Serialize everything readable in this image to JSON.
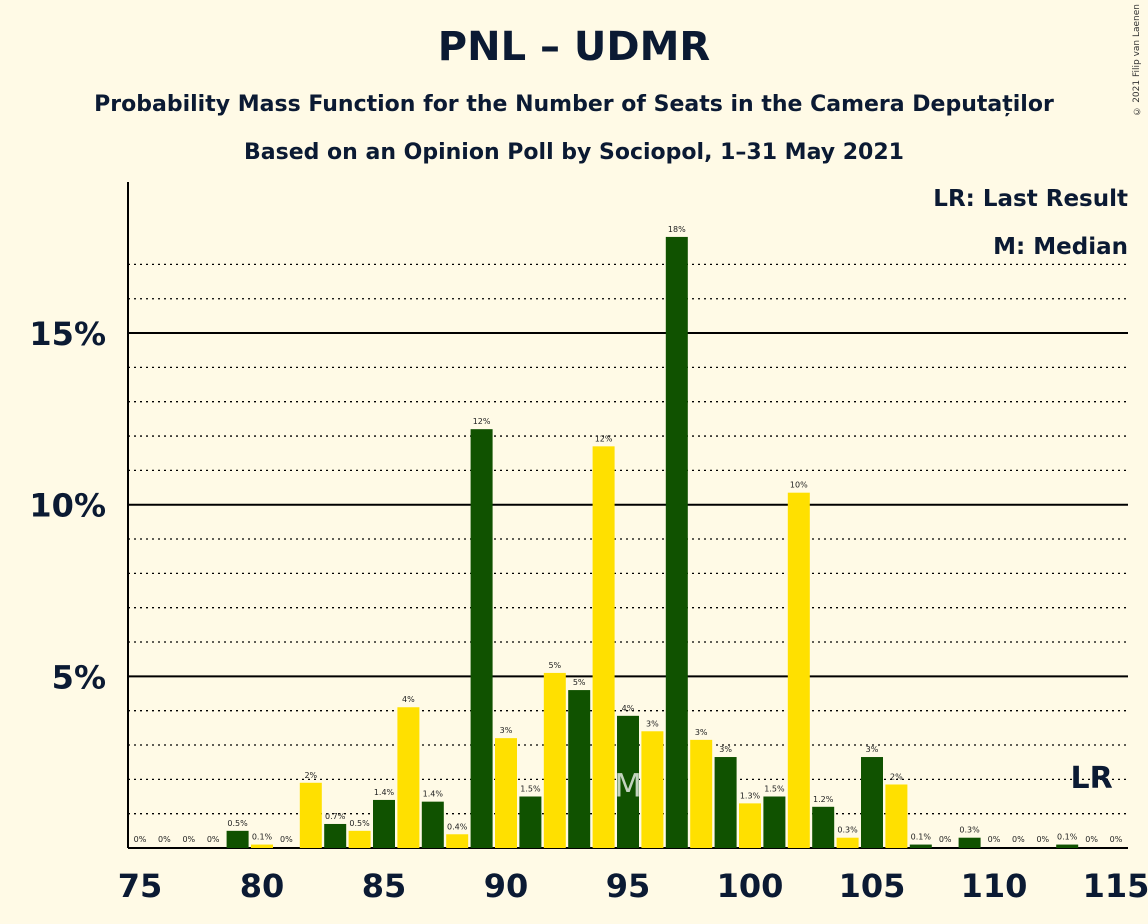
{
  "header": {
    "title": "PNL – UDMR",
    "subtitle": "Probability Mass Function for the Number of Seats in the Camera Deputaților",
    "subtitle2": "Based on an Opinion Poll by Sociopol, 1–31 May 2021",
    "copyright": "© 2021 Filip van Laenen"
  },
  "legend": {
    "last_result": "LR: Last Result",
    "median": "M: Median"
  },
  "colors": {
    "background": "#fffae6",
    "dark_green": "#105200",
    "yellow": "#ffe000",
    "text": "#0b1a33"
  },
  "chart_data": {
    "type": "bar",
    "x": [
      75,
      76,
      77,
      78,
      79,
      80,
      81,
      82,
      83,
      84,
      85,
      86,
      87,
      88,
      89,
      90,
      91,
      92,
      93,
      94,
      95,
      96,
      97,
      98,
      99,
      100,
      101,
      102,
      103,
      104,
      105,
      106,
      107,
      108,
      109,
      110,
      111,
      112,
      113,
      114,
      115
    ],
    "values": [
      0,
      0,
      0,
      0,
      0.5,
      0.1,
      0,
      1.9,
      0.7,
      0.5,
      1.4,
      4.1,
      1.35,
      0.4,
      12.2,
      3.2,
      1.5,
      5.1,
      4.6,
      11.7,
      3.85,
      3.4,
      17.8,
      3.15,
      2.65,
      1.3,
      1.5,
      10.35,
      1.2,
      0.3,
      2.65,
      1.85,
      0.1,
      0,
      0.3,
      0,
      0,
      0,
      0.1,
      0,
      0
    ],
    "labels": [
      "0%",
      "0%",
      "0%",
      "0%",
      "0.5%",
      "0.1%",
      "0%",
      "2%",
      "0.7%",
      "0.5%",
      "1.4%",
      "4%",
      "1.4%",
      "0.4%",
      "12%",
      "3%",
      "1.5%",
      "5%",
      "5%",
      "12%",
      "4%",
      "3%",
      "18%",
      "3%",
      "3%",
      "1.3%",
      "1.5%",
      "10%",
      "1.2%",
      "0.3%",
      "3%",
      "2%",
      "0.1%",
      "0%",
      "0.3%",
      "0%",
      "0%",
      "0%",
      "0.1%",
      "0%",
      "0%"
    ],
    "x_ticks": [
      "75",
      "80",
      "85",
      "90",
      "95",
      "100",
      "105",
      "110",
      "115"
    ],
    "y_ticks": [
      "5%",
      "10%",
      "15%"
    ],
    "y_tick_values": [
      5,
      10,
      15
    ],
    "ylim": [
      0,
      19.5
    ],
    "median_seat": 95,
    "median_marker": "M",
    "last_result_seat": 114,
    "last_result_marker": "LR",
    "grid": true
  }
}
